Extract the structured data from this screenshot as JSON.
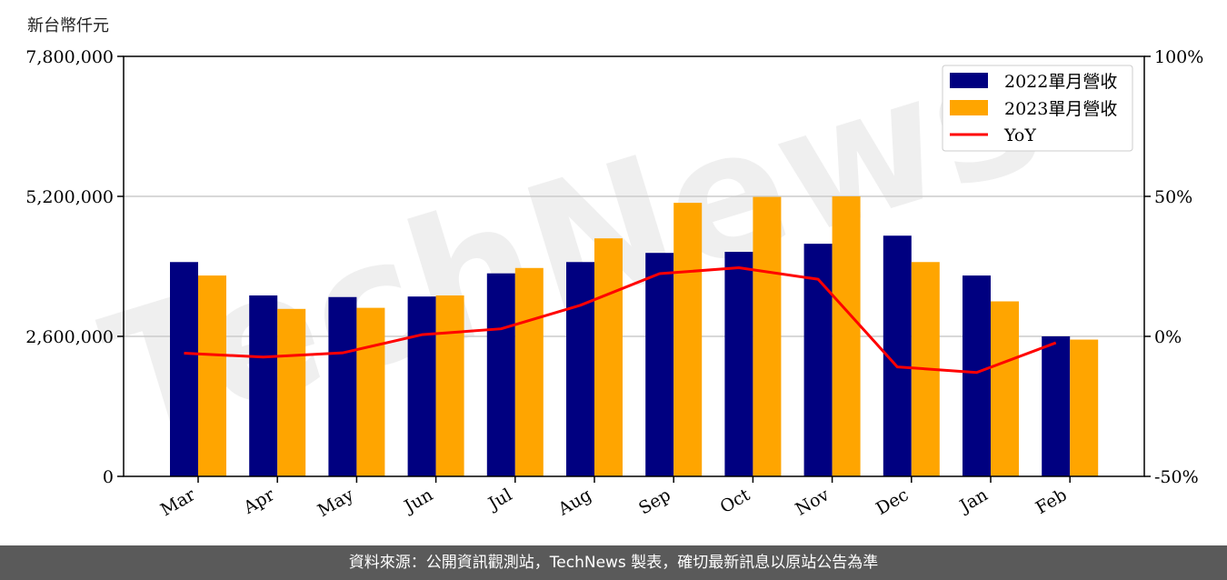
{
  "unit_label": "新台幣仟元",
  "footer_text": "資料來源：公開資訊觀測站，TechNews 製表，確切最新訊息以原站公告為準",
  "watermark": "TechNews",
  "colors": {
    "series_2022": "#000080",
    "series_2023": "#FFA500",
    "yoy": "#FF0000",
    "grid": "#cccccc",
    "footer_bg": "#5a5a5a"
  },
  "chart_data": {
    "type": "bar",
    "categories": [
      "Mar",
      "Apr",
      "May",
      "Jun",
      "Jul",
      "Aug",
      "Sep",
      "Oct",
      "Nov",
      "Dec",
      "Jan",
      "Feb"
    ],
    "series": [
      {
        "name": "2022單月營收",
        "values": [
          3980000,
          3360000,
          3330000,
          3340000,
          3770000,
          3980000,
          4150000,
          4170000,
          4320000,
          4470000,
          3730000,
          2600000
        ]
      },
      {
        "name": "2023單月營收",
        "values": [
          3730000,
          3110000,
          3130000,
          3360000,
          3870000,
          4420000,
          5080000,
          5190000,
          5200000,
          3980000,
          3250000,
          2540000
        ]
      }
    ],
    "line_series": {
      "name": "YoY",
      "axis": "right",
      "values": [
        -6.0,
        -7.4,
        -5.9,
        0.6,
        2.7,
        11.1,
        22.4,
        24.5,
        20.4,
        -10.9,
        -12.9,
        -2.3
      ]
    },
    "y_left": {
      "lim": [
        0,
        7800000
      ],
      "ticks": [
        0,
        2600000,
        5200000,
        7800000
      ],
      "tick_labels": [
        "0",
        "2,600,000",
        "5,200,000",
        "7,800,000"
      ]
    },
    "y_right": {
      "lim": [
        -50,
        100
      ],
      "ticks": [
        -50,
        0,
        50,
        100
      ],
      "tick_labels": [
        "-50%",
        "0%",
        "50%",
        "100%"
      ]
    },
    "grid": "horizontal",
    "legend_position": "top-right"
  }
}
